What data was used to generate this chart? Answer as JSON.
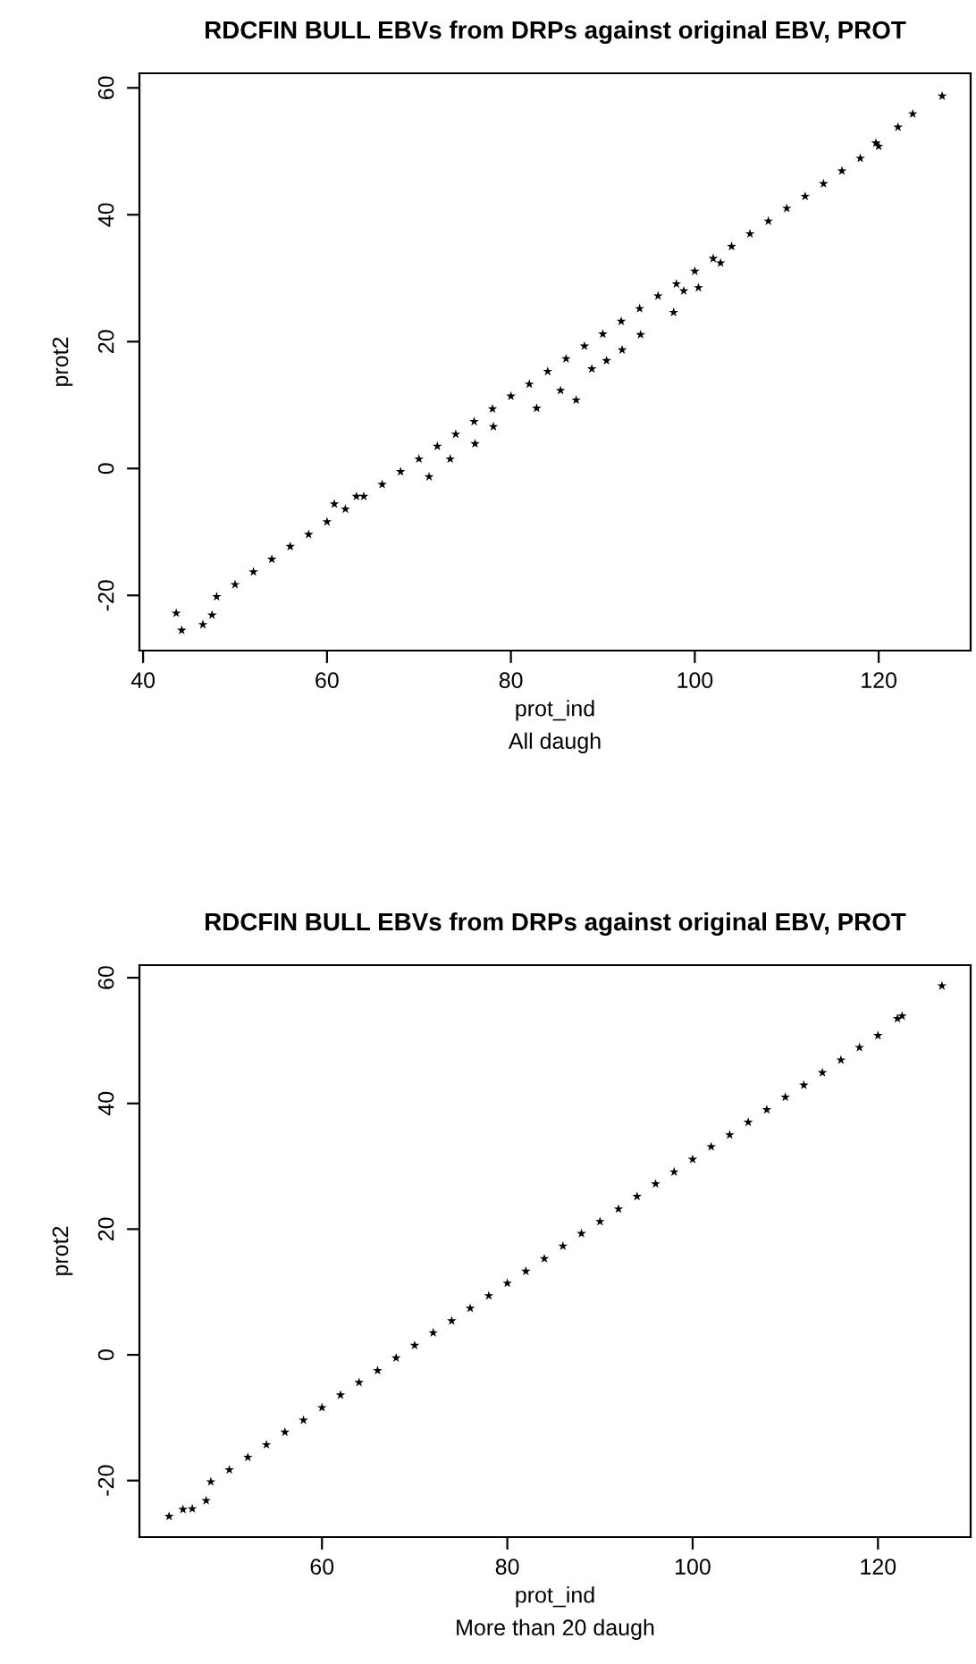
{
  "chart_data": [
    {
      "type": "scatter",
      "title": "RDCFIN BULL EBVs from DRPs against original EBV, PROT",
      "xlabel": "prot_ind",
      "ylabel": "prot2",
      "annotations": [
        "All daugh"
      ],
      "marker": "star",
      "grid": false,
      "xlim": [
        39.6,
        130
      ],
      "ylim": [
        -28.7,
        62.3
      ],
      "xticks": [
        40,
        60,
        80,
        100,
        120
      ],
      "yticks": [
        -20,
        0,
        20,
        40,
        60
      ],
      "series": [
        {
          "color": "#000000",
          "x": [
            43.6,
            44.2,
            46.5,
            47.5,
            48,
            50,
            52,
            54,
            56,
            58,
            60,
            62,
            64,
            66,
            68,
            70,
            72,
            74,
            76,
            78,
            80,
            82,
            84,
            86,
            88,
            90,
            92,
            94,
            96,
            98,
            100,
            102,
            104,
            106,
            108,
            110,
            112,
            114,
            116,
            118,
            119.7,
            120,
            122.1,
            123.7,
            126.9,
            60.8,
            63.2,
            71.1,
            73.4,
            76.1,
            78.1,
            82.8,
            85.4,
            87.1,
            88.8,
            90.4,
            92.1,
            94.1,
            97.7,
            98.8,
            100.4,
            102.8
          ],
          "values": [
            -22.8,
            -25.5,
            -24.6,
            -23.1,
            -20.2,
            -18.3,
            -16.3,
            -14.3,
            -12.3,
            -10.4,
            -8.4,
            -6.4,
            -4.4,
            -2.5,
            -0.5,
            1.5,
            3.5,
            5.4,
            7.4,
            9.4,
            11.4,
            13.3,
            15.3,
            17.3,
            19.3,
            21.2,
            23.2,
            25.2,
            27.2,
            29.1,
            31.1,
            33.1,
            35.0,
            37.0,
            39.0,
            41.0,
            42.9,
            44.9,
            46.9,
            48.9,
            51.3,
            50.8,
            53.8,
            55.9,
            58.7,
            -5.6,
            -4.4,
            -1.3,
            1.5,
            3.9,
            6.6,
            9.5,
            12.3,
            10.8,
            15.7,
            17.0,
            18.7,
            21.1,
            24.6,
            28.0,
            28.5,
            32.4
          ]
        }
      ]
    },
    {
      "type": "scatter",
      "title": "RDCFIN BULL EBVs from DRPs against original EBV, PROT",
      "xlabel": "prot_ind",
      "ylabel": "prot2",
      "annotations": [
        "More than 20 daugh"
      ],
      "marker": "star",
      "grid": false,
      "xlim": [
        40.3,
        130
      ],
      "ylim": [
        -29,
        62
      ],
      "xticks": [
        60,
        80,
        100,
        120
      ],
      "yticks": [
        -20,
        0,
        20,
        40,
        60
      ],
      "series": [
        {
          "color": "#000000",
          "x": [
            43.5,
            45,
            46,
            47.5,
            48,
            50,
            52,
            54,
            56,
            58,
            60,
            62,
            64,
            66,
            68,
            70,
            72,
            74,
            76,
            78,
            80,
            82,
            84,
            86,
            88,
            90,
            92,
            94,
            96,
            98,
            100,
            102,
            104,
            106,
            108,
            110,
            112,
            114,
            116,
            118,
            120,
            122.1,
            122.6,
            126.9
          ],
          "values": [
            -25.7,
            -24.6,
            -24.5,
            -23.2,
            -20.2,
            -18.3,
            -16.3,
            -14.3,
            -12.3,
            -10.4,
            -8.4,
            -6.4,
            -4.4,
            -2.5,
            -0.5,
            1.5,
            3.5,
            5.4,
            7.4,
            9.4,
            11.4,
            13.3,
            15.3,
            17.3,
            19.3,
            21.2,
            23.2,
            25.2,
            27.2,
            29.1,
            31.1,
            33.1,
            35.0,
            37.0,
            39.0,
            41.0,
            42.9,
            44.9,
            46.9,
            48.9,
            50.8,
            53.5,
            53.9,
            58.7
          ]
        }
      ]
    }
  ]
}
